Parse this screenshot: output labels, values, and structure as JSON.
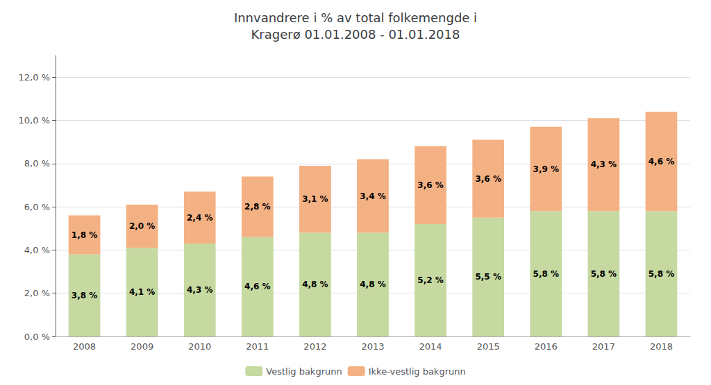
{
  "chart_data": {
    "type": "bar",
    "title": "Innvandrere i % av total folkemengde i\nKragerø 01.01.2008 - 01.01.2018",
    "categories": [
      "2008",
      "2009",
      "2010",
      "2011",
      "2012",
      "2013",
      "2014",
      "2015",
      "2016",
      "2017",
      "2018"
    ],
    "stacked": true,
    "series": [
      {
        "name": "Vestlig bakgrunn",
        "color": "#c5d9a0",
        "values": [
          3.8,
          4.1,
          4.3,
          4.6,
          4.8,
          4.8,
          5.2,
          5.5,
          5.8,
          5.8,
          5.8
        ],
        "value_labels": [
          "3,8 %",
          "4,1 %",
          "4,3 %",
          "4,6 %",
          "4,8 %",
          "4,8 %",
          "5,2 %",
          "5,5 %",
          "5,8 %",
          "5,8 %",
          "5,8 %"
        ]
      },
      {
        "name": "Ikke-vestlig bakgrunn",
        "color": "#f4b183",
        "values": [
          1.8,
          2.0,
          2.4,
          2.8,
          3.1,
          3.4,
          3.6,
          3.6,
          3.9,
          4.3,
          4.6
        ],
        "value_labels": [
          "1,8 %",
          "2,0 %",
          "2,4 %",
          "2,8 %",
          "3,1 %",
          "3,4 %",
          "3,6 %",
          "3,6 %",
          "3,9 %",
          "4,3 %",
          "4,6 %"
        ]
      }
    ],
    "ylim": [
      0,
      13.0
    ],
    "yticks": [
      {
        "value": 0.0,
        "label": "0,0 %"
      },
      {
        "value": 2.0,
        "label": "2,0 %"
      },
      {
        "value": 4.0,
        "label": "4,0 %"
      },
      {
        "value": 6.0,
        "label": "6,0 %"
      },
      {
        "value": 8.0,
        "label": "8,0 %"
      },
      {
        "value": 10.0,
        "label": "10,0 %"
      },
      {
        "value": 12.0,
        "label": "12,0 %"
      }
    ],
    "grid": true,
    "legend": "bottom",
    "data_labels": true
  }
}
